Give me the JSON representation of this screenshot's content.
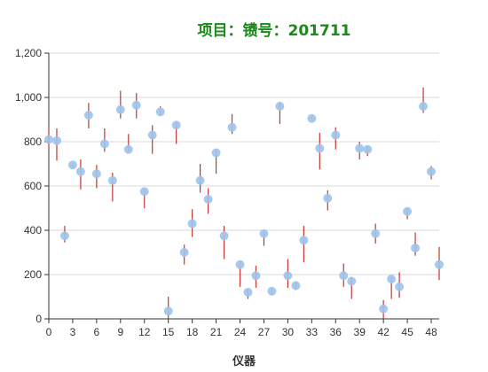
{
  "chart_data": {
    "type": "scatter",
    "title": "项目：镄号：201711",
    "xlabel": "仪器",
    "ylabel": "",
    "xlim": [
      0,
      49
    ],
    "ylim": [
      0,
      1200
    ],
    "x_ticks": [
      0,
      3,
      6,
      9,
      12,
      15,
      18,
      21,
      24,
      27,
      30,
      33,
      36,
      39,
      42,
      45,
      48
    ],
    "y_ticks": [
      0,
      200,
      400,
      600,
      800,
      1000,
      1200
    ],
    "y_tick_labels": [
      "0",
      "200",
      "400",
      "600",
      "800",
      "1,000",
      "1,200"
    ],
    "grid": "horizontal",
    "legend": "none",
    "colors": {
      "title": "#1a8a1a",
      "point": "#9ec3ec",
      "error_bar": "#c23531",
      "grid": "#d9d9d9",
      "axis": "#333333"
    },
    "series": [
      {
        "x": [
          0,
          1,
          2,
          3,
          4,
          5,
          6,
          7,
          8,
          9,
          10,
          11,
          12,
          13,
          14,
          15,
          16,
          17,
          18,
          19,
          20,
          21,
          22,
          23,
          24,
          25,
          26,
          27,
          28,
          29,
          30,
          31,
          32,
          33,
          34,
          35,
          36,
          37,
          38,
          39,
          40,
          41,
          42,
          43,
          44,
          45,
          46,
          47,
          48,
          49
        ],
        "y": [
          810,
          805,
          375,
          695,
          665,
          920,
          655,
          790,
          625,
          945,
          765,
          965,
          575,
          830,
          935,
          35,
          875,
          300,
          430,
          625,
          540,
          750,
          375,
          865,
          245,
          120,
          195,
          385,
          125,
          960,
          195,
          150,
          355,
          905,
          770,
          545,
          830,
          195,
          170,
          770,
          765,
          385,
          45,
          180,
          145,
          485,
          320,
          960,
          665,
          245
        ],
        "error_low": [
          770,
          715,
          345,
          680,
          585,
          860,
          590,
          755,
          530,
          905,
          755,
          905,
          500,
          745,
          920,
          0,
          790,
          245,
          370,
          570,
          475,
          655,
          270,
          835,
          145,
          90,
          140,
          330,
          110,
          880,
          140,
          130,
          255,
          900,
          675,
          490,
          765,
          145,
          90,
          720,
          735,
          340,
          0,
          90,
          95,
          450,
          285,
          930,
          630,
          175
        ],
        "error_high": [
          865,
          860,
          420,
          700,
          720,
          975,
          695,
          860,
          660,
          1030,
          835,
          1020,
          585,
          875,
          960,
          100,
          890,
          335,
          495,
          700,
          590,
          765,
          420,
          925,
          260,
          135,
          240,
          395,
          140,
          980,
          270,
          170,
          420,
          915,
          840,
          580,
          865,
          250,
          190,
          800,
          780,
          430,
          85,
          190,
          210,
          500,
          390,
          1045,
          690,
          325
        ]
      }
    ]
  }
}
